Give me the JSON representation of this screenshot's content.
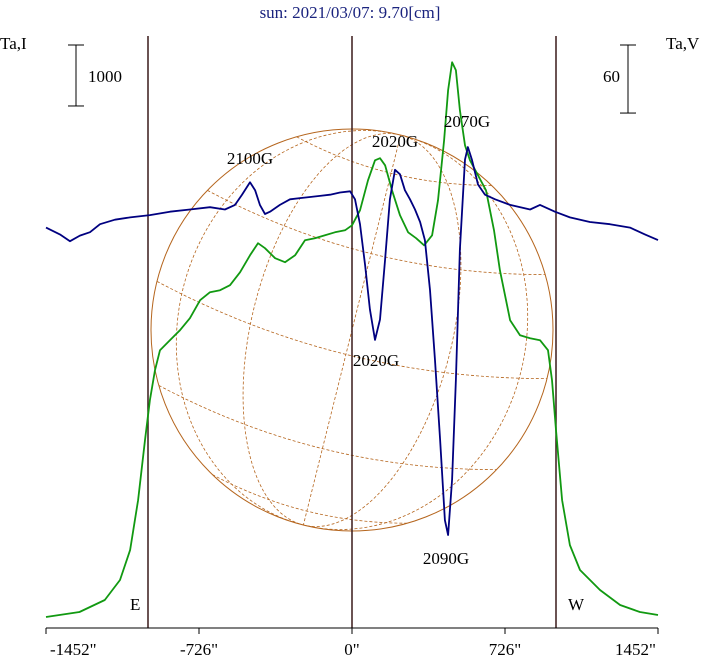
{
  "chart_data": {
    "type": "line",
    "title": "sun: 2021/03/07: 9.70[cm]",
    "ylabel": "Ta,I",
    "y2label": "Ta,V",
    "xlim": [
      -1452,
      1452
    ],
    "xticks": [
      {
        "value": -1452,
        "label": "-1452\""
      },
      {
        "value": -726,
        "label": "-726\""
      },
      {
        "value": 0,
        "label": "0\""
      },
      {
        "value": 726,
        "label": "726\""
      },
      {
        "value": 1452,
        "label": "1452\""
      }
    ],
    "ylim": [
      0,
      9840
    ],
    "y2lim": [
      -360,
      169
    ],
    "yscale_bar": {
      "value": 1000,
      "label": "1000"
    },
    "y2scale_bar": {
      "value": 60,
      "label": "60"
    },
    "vlines": [
      {
        "value": -968,
        "label": "E"
      },
      {
        "value": 0
      },
      {
        "value": 968,
        "label": "W"
      }
    ],
    "series": [
      {
        "color": "#119911",
        "axis": "y",
        "x": [
          -1452,
          -1293,
          -1173,
          -1101,
          -1053,
          -1015,
          -982,
          -959,
          -935,
          -911,
          -864,
          -816,
          -769,
          -721,
          -674,
          -626,
          -579,
          -531,
          -484,
          -446,
          -413,
          -365,
          -318,
          -270,
          -223,
          -176,
          -128,
          -81,
          -33,
          0,
          38,
          76,
          109,
          133,
          157,
          190,
          228,
          266,
          304,
          342,
          380,
          408,
          437,
          456,
          475,
          493,
          512,
          536,
          560,
          598,
          636,
          674,
          702,
          750,
          797,
          845,
          892,
          930,
          949,
          968,
          997,
          1034,
          1082,
          1177,
          1272,
          1366,
          1452
        ],
        "values": [
          180,
          262,
          459,
          787,
          1278,
          2098,
          3081,
          3737,
          4229,
          4556,
          4720,
          4884,
          5081,
          5376,
          5507,
          5540,
          5622,
          5835,
          6113,
          6310,
          6228,
          6064,
          5999,
          6113,
          6359,
          6392,
          6441,
          6490,
          6523,
          6605,
          6851,
          7343,
          7671,
          7704,
          7589,
          7179,
          6769,
          6490,
          6392,
          6277,
          6441,
          7015,
          7998,
          8818,
          9277,
          9146,
          8490,
          7916,
          7671,
          7425,
          7179,
          6523,
          5868,
          5048,
          4802,
          4753,
          4720,
          4556,
          4065,
          3245,
          2098,
          1360,
          951,
          623,
          377,
          262,
          213
        ]
      },
      {
        "color": "#000080",
        "axis": "y2",
        "x": [
          -1452,
          -1386,
          -1338,
          -1291,
          -1243,
          -1196,
          -1125,
          -1053,
          -959,
          -864,
          -769,
          -674,
          -603,
          -555,
          -522,
          -484,
          -460,
          -437,
          -413,
          -389,
          -342,
          -294,
          -247,
          -199,
          -152,
          -104,
          -57,
          -9,
          14,
          38,
          62,
          85,
          109,
          133,
          157,
          180,
          204,
          228,
          251,
          275,
          299,
          323,
          346,
          370,
          394,
          418,
          441,
          456,
          475,
          493,
          512,
          536,
          550,
          569,
          598,
          631,
          679,
          750,
          845,
          892,
          963,
          1034,
          1129,
          1224,
          1319,
          1390,
          1452
        ],
        "values": [
          -7,
          -13,
          -19,
          -14,
          -11,
          -4,
          0,
          2,
          4,
          7,
          9,
          11,
          9,
          13,
          22,
          33,
          26,
          13,
          5,
          7,
          13,
          18,
          19,
          20,
          21,
          22,
          24,
          25,
          18,
          -4,
          -40,
          -79,
          -106,
          -88,
          -35,
          18,
          44,
          40,
          26,
          18,
          9,
          -2,
          -18,
          -62,
          -124,
          -194,
          -265,
          -278,
          -229,
          -141,
          -26,
          53,
          64,
          53,
          31,
          22,
          18,
          13,
          9,
          13,
          7,
          2,
          -2,
          -4,
          -7,
          -13,
          -18
        ]
      }
    ],
    "annotations": [
      "2100G",
      "2020G",
      "2070G",
      "2020G",
      "2090G"
    ]
  }
}
